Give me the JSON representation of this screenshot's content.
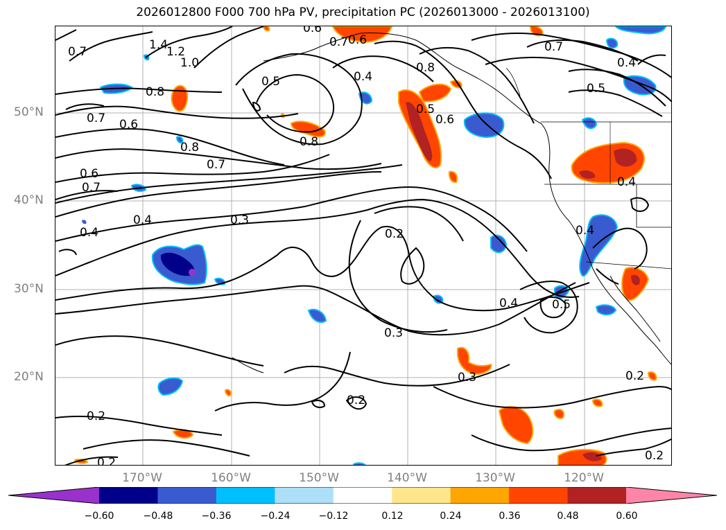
{
  "title": "2026012800 F000 700 hPa PV, precipitation PC (2026013000 - 2026013100)",
  "latitude_labels": [
    "50°N",
    "40°N",
    "30°N",
    "20°N"
  ],
  "longitude_labels": [
    "170°W",
    "160°W",
    "150°W",
    "140°W",
    "130°W",
    "120°W"
  ],
  "colorbar": {
    "colors": [
      "#9932CC",
      "#00008B",
      "#3A5BD0",
      "#00BFFF",
      "#ADDFF8",
      "#FFFFFF",
      "#FFE68C",
      "#FFA500",
      "#FF4500",
      "#B22222",
      "#FF85A8"
    ],
    "tick_labels": [
      "−0.60",
      "−0.48",
      "−0.36",
      "−0.24",
      "−0.12",
      "0.12",
      "0.24",
      "0.36",
      "0.48",
      "0.60"
    ]
  },
  "contour_labels": [
    "1.4",
    "1.2",
    "1.0",
    "0.8",
    "0.7",
    "0.6",
    "0.5",
    "0.4",
    "0.3",
    "0.2"
  ]
}
